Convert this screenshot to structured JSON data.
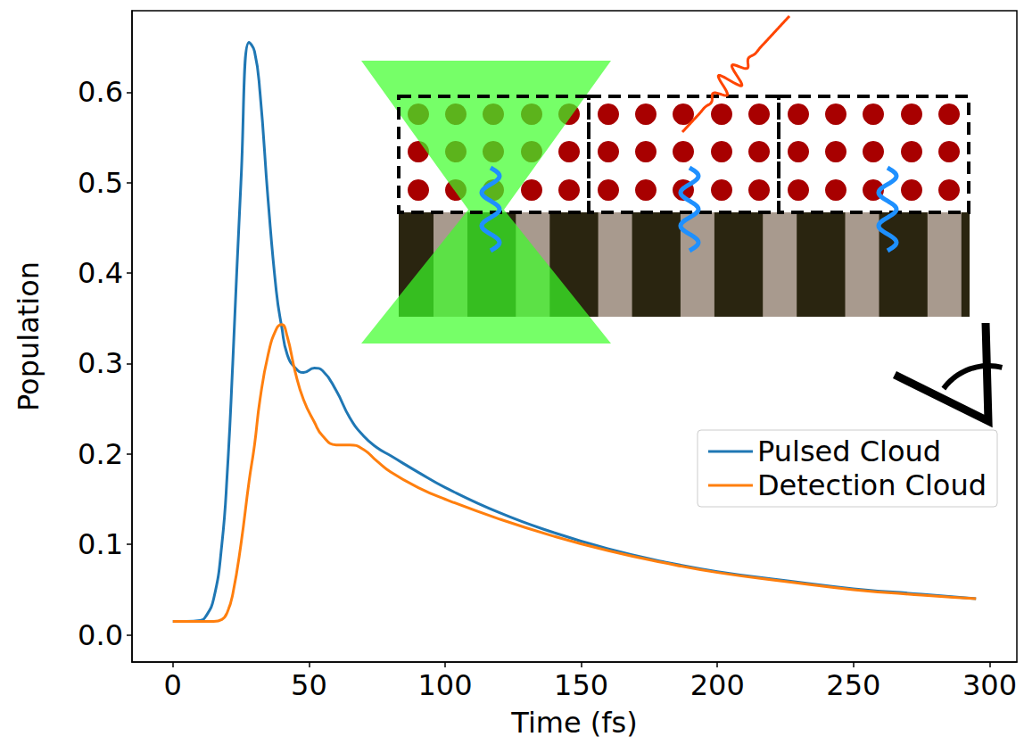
{
  "chart_data": {
    "type": "line",
    "x_label": "Time (fs)",
    "y_label": "Population",
    "x": [
      0,
      5,
      10,
      12,
      15,
      18,
      20,
      22,
      25,
      28,
      30,
      32,
      35,
      38,
      40,
      42,
      45,
      48,
      52,
      55,
      60,
      65,
      70,
      75,
      80,
      90,
      100,
      120,
      140,
      160,
      180,
      200,
      225,
      250,
      275,
      295
    ],
    "series": [
      {
        "name": "Pulsed Cloud",
        "color": "#1f77b4",
        "values": [
          0.015,
          0.015,
          0.016,
          0.02,
          0.04,
          0.1,
          0.18,
          0.3,
          0.5,
          0.655,
          0.645,
          0.6,
          0.48,
          0.38,
          0.34,
          0.31,
          0.295,
          0.29,
          0.295,
          0.292,
          0.27,
          0.24,
          0.22,
          0.207,
          0.198,
          0.18,
          0.163,
          0.135,
          0.113,
          0.095,
          0.081,
          0.07,
          0.06,
          0.051,
          0.045,
          0.04
        ]
      },
      {
        "name": "Detection Cloud",
        "color": "#ff7f0e",
        "values": [
          0.015,
          0.015,
          0.015,
          0.015,
          0.015,
          0.017,
          0.025,
          0.045,
          0.1,
          0.17,
          0.21,
          0.26,
          0.31,
          0.338,
          0.343,
          0.33,
          0.29,
          0.26,
          0.235,
          0.22,
          0.21,
          0.21,
          0.205,
          0.192,
          0.18,
          0.163,
          0.15,
          0.128,
          0.109,
          0.093,
          0.08,
          0.069,
          0.059,
          0.05,
          0.044,
          0.04
        ]
      }
    ],
    "xlim": [
      -15,
      310
    ],
    "xticks": [
      0,
      50,
      100,
      150,
      200,
      250,
      300
    ],
    "ylim": [
      -0.03,
      0.69
    ],
    "yticks": [
      {
        "value": 0,
        "label": "0.0"
      },
      0.1,
      0.2,
      0.3,
      0.4,
      0.5,
      0.6
    ],
    "grid": false,
    "legend": "right"
  }
}
